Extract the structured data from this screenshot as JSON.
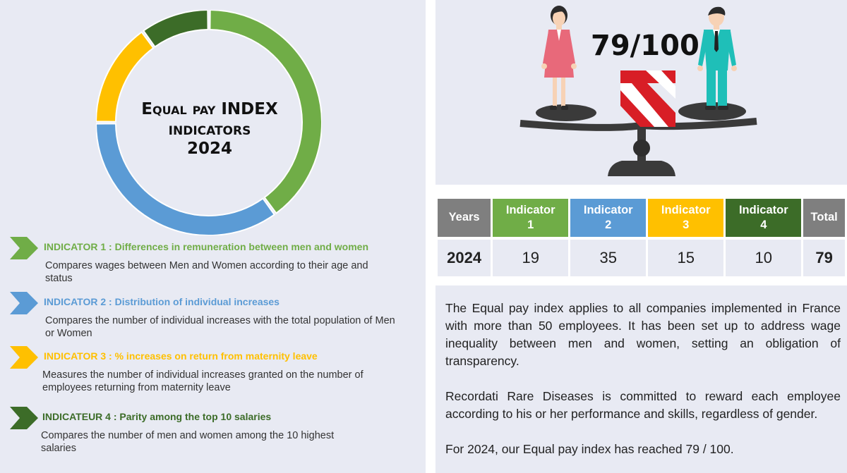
{
  "donut": {
    "title_line1": "Equal pay INDEX",
    "title_line2": "INDICATORS",
    "title_line3": "2024"
  },
  "indicators": [
    {
      "title": "INDICATOR 1 : Differences in remuneration between men and women",
      "description": "Compares wages between Men and Women according to their age and status",
      "color": "#70ad47"
    },
    {
      "title": "INDICATOR 2 : Distribution of individual increases",
      "description": "Compares the number of individual increases with the total population of Men or Women",
      "color": "#5b9bd5"
    },
    {
      "title": "INDICATOR 3 : % increases on return from maternity leave",
      "description": "Measures the number of individual increases granted on the number of employees returning from maternity leave",
      "color": "#ffc000"
    },
    {
      "title": "INDICATEUR 4 : Parity among the top 10 salaries",
      "description": "Compares the number of men and women among the 10 highest salaries",
      "color": "#3c6c28"
    }
  ],
  "illustration": {
    "score": "79/100"
  },
  "table": {
    "headers": [
      {
        "line1": "Years",
        "line2": "",
        "color": "#7f7f7f"
      },
      {
        "line1": "Indicator",
        "line2": "1",
        "color": "#70ad47"
      },
      {
        "line1": "Indicator",
        "line2": "2",
        "color": "#5b9bd5"
      },
      {
        "line1": "Indicator",
        "line2": "3",
        "color": "#ffc000"
      },
      {
        "line1": "Indicator",
        "line2": "4",
        "color": "#3c6c28"
      },
      {
        "line1": "Total",
        "line2": "",
        "color": "#7f7f7f"
      }
    ],
    "row": [
      "2024",
      "19",
      "35",
      "15",
      "10",
      "79"
    ]
  },
  "description": {
    "p1": "The Equal pay index applies to all companies implemented in France with more than 50 employees. It has been set up to address wage inequality between men and women, setting an obligation of transparency.",
    "p2": "Recordati Rare Diseases is committed to reward each employee according to his or her performance and skills, regardless of gender.",
    "p3": "For 2024, our Equal pay index has reached 79 / 100."
  },
  "chart_data": {
    "type": "pie",
    "style": "donut",
    "categories": [
      "Indicator 1",
      "Indicator 2",
      "Indicator 3",
      "Indicator 4"
    ],
    "values": [
      40,
      35,
      15,
      10
    ],
    "colors": [
      "#70ad47",
      "#5b9bd5",
      "#ffc000",
      "#3c6c28"
    ],
    "start_angle_deg": 0,
    "direction": "clockwise"
  }
}
